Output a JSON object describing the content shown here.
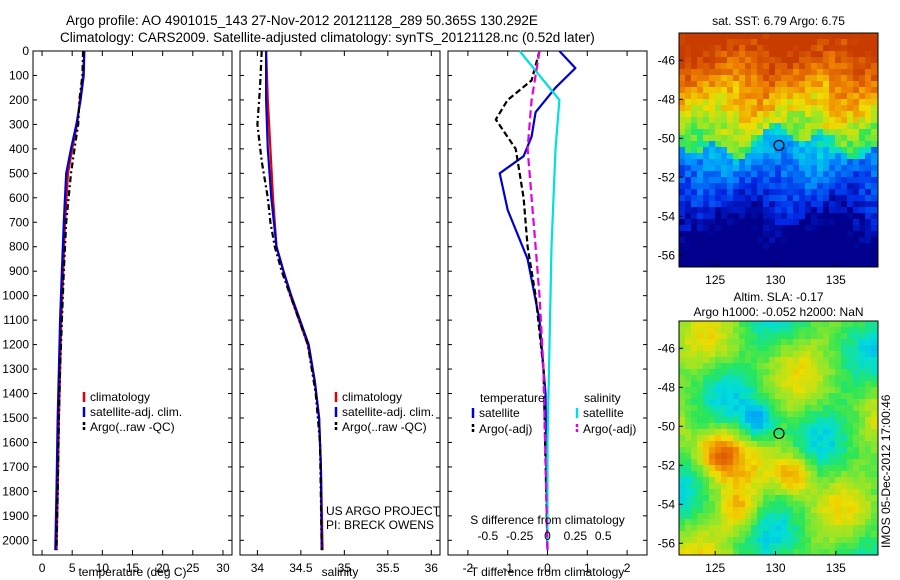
{
  "title_line1": "Argo profile: AO 4901015_143 27-Nov-2012 20121128_289 50.365S 130.292E",
  "title_line2": "Climatology: CARS2009. Satellite-adjusted climatology: synTS_20121128.nc (0.52d later)",
  "stamp": "IMOS 05-Dec-2012 17:00:46",
  "chart_data": [
    {
      "type": "line",
      "xlabel": "temperature (deg C)",
      "xlim": [
        -1.5,
        31.5
      ],
      "xticks": [
        0,
        5,
        10,
        15,
        20,
        25,
        30
      ],
      "ylim": [
        2060,
        0
      ],
      "yticks": [
        0,
        100,
        200,
        300,
        400,
        500,
        600,
        700,
        800,
        900,
        1000,
        1100,
        1200,
        1300,
        1400,
        1500,
        1600,
        1700,
        1800,
        1900,
        2000
      ],
      "legend": [
        "climatology",
        "satellite-adj. clim.",
        "Argo(..raw -QC)"
      ],
      "series": [
        {
          "name": "climatology",
          "color": "#e00000",
          "dash": "none",
          "x": [
            7.0,
            6.8,
            6.3,
            5.8,
            5.0,
            4.3,
            3.8,
            3.5,
            3.2,
            3.0,
            2.8,
            2.6,
            2.4
          ],
          "y": [
            0,
            100,
            200,
            300,
            400,
            500,
            700,
            900,
            1100,
            1300,
            1500,
            1800,
            2040
          ]
        },
        {
          "name": "satellite-adj. clim.",
          "color": "#0000d0",
          "dash": "none",
          "x": [
            7.0,
            6.9,
            6.4,
            5.7,
            4.8,
            4.0,
            3.6,
            3.3,
            3.0,
            2.8,
            2.6,
            2.4,
            2.2
          ],
          "y": [
            0,
            100,
            200,
            300,
            400,
            500,
            700,
            900,
            1100,
            1300,
            1500,
            1800,
            2040
          ]
        },
        {
          "name": "Argo(..raw -QC)",
          "color": "#000000",
          "dash": "6,3,2,3",
          "x": [
            6.8,
            6.7,
            6.2,
            6.0,
            5.5,
            4.8,
            4.0,
            3.6,
            3.3,
            3.0,
            2.8,
            2.6,
            2.4
          ],
          "y": [
            0,
            100,
            200,
            300,
            380,
            500,
            700,
            900,
            1100,
            1300,
            1500,
            1800,
            2040
          ]
        }
      ]
    },
    {
      "type": "line",
      "xlabel": "salinity",
      "xlim": [
        33.8,
        36.1
      ],
      "xticks": [
        34,
        34.5,
        35,
        35.5,
        36
      ],
      "ylim": [
        2060,
        0
      ],
      "legend": [
        "climatology",
        "satellite-adj. clim.",
        "Argo(..raw -QC)"
      ],
      "annotation": [
        "US ARGO PROJECT",
        "PI: BRECK OWENS"
      ],
      "series": [
        {
          "name": "climatology",
          "color": "#e00000",
          "dash": "none",
          "x": [
            34.1,
            34.12,
            34.15,
            34.18,
            34.22,
            34.3,
            34.38,
            34.48,
            34.58,
            34.66,
            34.71,
            34.73,
            34.75
          ],
          "y": [
            0,
            200,
            400,
            600,
            800,
            900,
            1000,
            1100,
            1200,
            1350,
            1500,
            1700,
            2040
          ]
        },
        {
          "name": "satellite-adj. clim.",
          "color": "#0000d0",
          "dash": "none",
          "x": [
            34.1,
            34.1,
            34.12,
            34.16,
            34.22,
            34.3,
            34.39,
            34.49,
            34.59,
            34.66,
            34.71,
            34.73,
            34.74
          ],
          "y": [
            0,
            200,
            400,
            600,
            800,
            900,
            1000,
            1100,
            1200,
            1350,
            1500,
            1700,
            2040
          ]
        },
        {
          "name": "Argo(..raw -QC)",
          "color": "#000000",
          "dash": "6,3,2,3",
          "x": [
            34.05,
            34.03,
            34.0,
            34.05,
            34.12,
            34.15,
            34.2,
            34.28,
            34.38,
            34.48,
            34.58,
            34.67,
            34.72,
            34.74
          ],
          "y": [
            0,
            150,
            300,
            450,
            600,
            700,
            800,
            900,
            1000,
            1100,
            1200,
            1400,
            1600,
            2040
          ]
        }
      ]
    },
    {
      "type": "line",
      "xlabel": "T difference from climatology",
      "xlabel_top": "S difference from climatology",
      "xlim": [
        -2.5,
        2.5
      ],
      "xticks": [
        -2,
        -1,
        0,
        1,
        2
      ],
      "s_ticks": [
        "-0.5",
        "-0.25",
        "0",
        "0.25",
        "0.5"
      ],
      "ylim": [
        2060,
        0
      ],
      "legend_headers": [
        "temperature",
        "salinity"
      ],
      "legend": [
        "satellite",
        "Argo(-adj)",
        "satellite",
        "Argo(-adj)"
      ],
      "series": [
        {
          "name": "temperature satellite",
          "color": "#0000d0",
          "dash": "none",
          "x": [
            0.3,
            0.7,
            0.2,
            -0.3,
            -0.4,
            -0.6,
            -1.2,
            -1.0,
            -0.5,
            -0.2,
            -0.05,
            0.0
          ],
          "y": [
            0,
            70,
            150,
            250,
            350,
            430,
            500,
            650,
            850,
            1100,
            1400,
            2040
          ]
        },
        {
          "name": "temperature Argo(-adj)",
          "color": "#000000",
          "dash": "6,3",
          "x": [
            -0.2,
            -0.4,
            -1.0,
            -1.3,
            -0.8,
            -0.6,
            -0.5,
            -0.3,
            -0.1,
            0.0
          ],
          "y": [
            0,
            120,
            200,
            280,
            400,
            600,
            800,
            1000,
            1300,
            2040
          ]
        },
        {
          "name": "salinity satellite",
          "color": "#00e0e0",
          "dash": "none",
          "x": [
            -0.7,
            -0.2,
            0.3,
            0.2,
            0.1,
            0.05,
            0.0,
            0.0
          ],
          "y": [
            0,
            100,
            200,
            400,
            800,
            1200,
            1600,
            2040
          ]
        },
        {
          "name": "salinity Argo(-adj)",
          "color": "#e000e0",
          "dash": "8,4",
          "x": [
            -0.2,
            -0.3,
            -0.4,
            -0.5,
            -0.4,
            -0.3,
            -0.2,
            -0.1,
            0.0
          ],
          "y": [
            0,
            100,
            200,
            400,
            600,
            800,
            1000,
            1300,
            2040
          ]
        }
      ]
    },
    {
      "type": "heatmap",
      "title": "sat. SST: 6.79 Argo: 6.75",
      "xlim": [
        122,
        138.5
      ],
      "ylim": [
        -56.6,
        -44.6
      ],
      "xticks": [
        125,
        130,
        135
      ],
      "yticks": [
        -46,
        -48,
        -50,
        -52,
        -54,
        -56
      ],
      "marker": {
        "lon": 130.292,
        "lat": -50.365
      }
    },
    {
      "type": "heatmap",
      "title": "Altim. SLA: -0.17",
      "subtitle": "Argo h1000: -0.052 h2000: NaN",
      "xlim": [
        122,
        138.5
      ],
      "ylim": [
        -56.6,
        -44.6
      ],
      "xticks": [
        125,
        130,
        135
      ],
      "yticks": [
        -46,
        -48,
        -50,
        -52,
        -54,
        -56
      ],
      "marker": {
        "lon": 130.292,
        "lat": -50.365
      }
    }
  ]
}
